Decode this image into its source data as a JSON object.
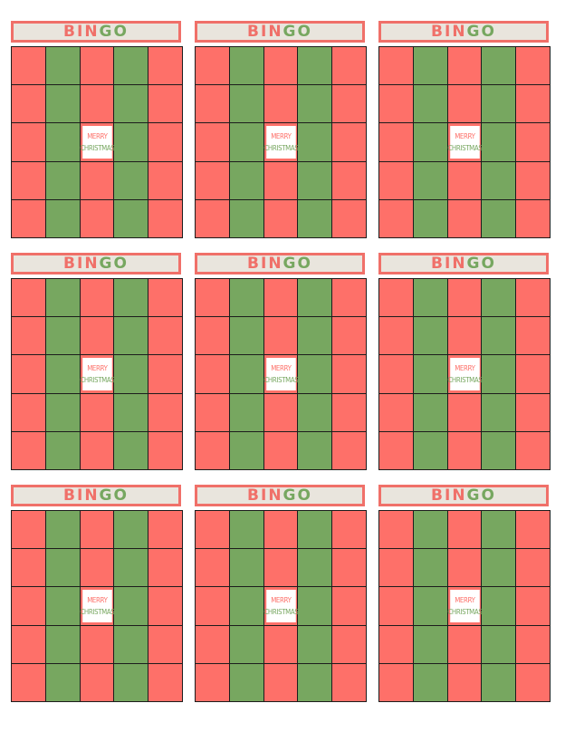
{
  "title_letters": [
    "B",
    "I",
    "N",
    "G",
    "O"
  ],
  "free_space": {
    "line1": "MERRY",
    "line2": "CHRISTMAS"
  },
  "colors": {
    "red": "#fe7069",
    "green": "#77a760",
    "header_bg": "#e9e5dd",
    "header_border": "#f07069",
    "title_red": "#f07069",
    "title_green": "#77a760",
    "grid_line": "#1c1c1c"
  },
  "card_count": 9,
  "column_pattern": [
    "red",
    "green",
    "red",
    "green",
    "red"
  ],
  "title_letter_colors": [
    "red",
    "red",
    "red",
    "green",
    "green"
  ]
}
